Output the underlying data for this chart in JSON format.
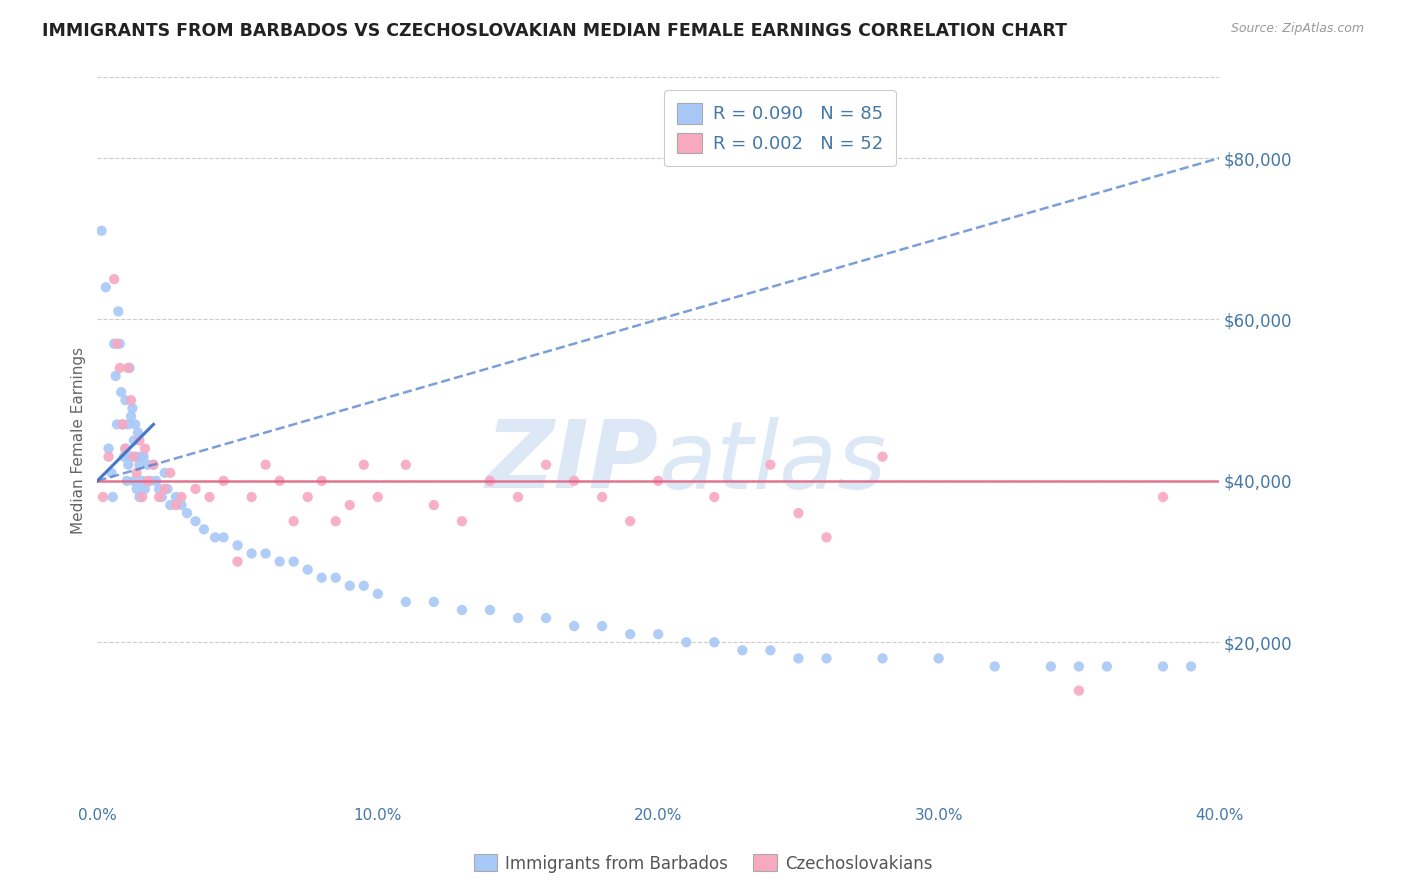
{
  "title": "IMMIGRANTS FROM BARBADOS VS CZECHOSLOVAKIAN MEDIAN FEMALE EARNINGS CORRELATION CHART",
  "source": "Source: ZipAtlas.com",
  "ylabel": "Median Female Earnings",
  "legend_label1": "Immigrants from Barbados",
  "legend_label2": "Czechoslovakians",
  "R1": 0.09,
  "N1": 85,
  "R2": 0.002,
  "N2": 52,
  "color1": "#a8c8f8",
  "color2": "#f8a8c0",
  "trendline1_color": "#4477cc",
  "trendline2_color": "#e06080",
  "axis_label_color": "#4477aa",
  "watermark_color": "#dce8f5",
  "background_color": "#ffffff",
  "grid_color": "#cccccc",
  "xlim": [
    0,
    40
  ],
  "ylim": [
    0,
    90000
  ],
  "xlabel_vals": [
    0.0,
    10.0,
    20.0,
    30.0,
    40.0
  ],
  "ylabel_vals": [
    20000,
    40000,
    60000,
    80000
  ],
  "barbados_x": [
    0.15,
    0.3,
    0.4,
    0.5,
    0.55,
    0.6,
    0.65,
    0.7,
    0.75,
    0.8,
    0.85,
    0.9,
    0.95,
    1.0,
    1.0,
    1.05,
    1.1,
    1.1,
    1.15,
    1.2,
    1.2,
    1.25,
    1.3,
    1.3,
    1.35,
    1.4,
    1.4,
    1.45,
    1.5,
    1.5,
    1.55,
    1.6,
    1.65,
    1.7,
    1.8,
    1.9,
    2.0,
    2.1,
    2.2,
    2.3,
    2.4,
    2.5,
    2.6,
    2.8,
    3.0,
    3.2,
    3.5,
    3.8,
    4.2,
    4.5,
    5.0,
    5.5,
    6.0,
    6.5,
    7.0,
    7.5,
    8.0,
    8.5,
    9.0,
    9.5,
    10.0,
    11.0,
    12.0,
    13.0,
    14.0,
    15.0,
    16.0,
    17.0,
    18.0,
    19.0,
    20.0,
    21.0,
    22.0,
    23.0,
    24.0,
    25.0,
    26.0,
    28.0,
    30.0,
    32.0,
    34.0,
    35.0,
    36.0,
    38.0,
    39.0
  ],
  "barbados_y": [
    71000,
    64000,
    44000,
    41000,
    38000,
    57000,
    53000,
    47000,
    61000,
    57000,
    51000,
    47000,
    43000,
    50000,
    44000,
    40000,
    47000,
    42000,
    54000,
    48000,
    43000,
    49000,
    45000,
    40000,
    47000,
    43000,
    39000,
    46000,
    42000,
    38000,
    43000,
    40000,
    43000,
    39000,
    42000,
    40000,
    42000,
    40000,
    39000,
    38000,
    41000,
    39000,
    37000,
    38000,
    37000,
    36000,
    35000,
    34000,
    33000,
    33000,
    32000,
    31000,
    31000,
    30000,
    30000,
    29000,
    28000,
    28000,
    27000,
    27000,
    26000,
    25000,
    25000,
    24000,
    24000,
    23000,
    23000,
    22000,
    22000,
    21000,
    21000,
    20000,
    20000,
    19000,
    19000,
    18000,
    18000,
    18000,
    18000,
    17000,
    17000,
    17000,
    17000,
    17000,
    17000
  ],
  "czech_x": [
    0.2,
    0.4,
    0.6,
    0.7,
    0.8,
    0.9,
    1.0,
    1.1,
    1.2,
    1.3,
    1.4,
    1.5,
    1.6,
    1.7,
    1.8,
    2.0,
    2.2,
    2.4,
    2.6,
    2.8,
    3.0,
    3.5,
    4.0,
    4.5,
    5.0,
    5.5,
    6.0,
    6.5,
    7.0,
    7.5,
    8.0,
    8.5,
    9.0,
    9.5,
    10.0,
    11.0,
    12.0,
    13.0,
    14.0,
    15.0,
    16.0,
    17.0,
    18.0,
    19.0,
    20.0,
    22.0,
    24.0,
    25.0,
    26.0,
    28.0,
    35.0,
    38.0
  ],
  "czech_y": [
    38000,
    43000,
    65000,
    57000,
    54000,
    47000,
    44000,
    54000,
    50000,
    43000,
    41000,
    45000,
    38000,
    44000,
    40000,
    42000,
    38000,
    39000,
    41000,
    37000,
    38000,
    39000,
    38000,
    40000,
    30000,
    38000,
    42000,
    40000,
    35000,
    38000,
    40000,
    35000,
    37000,
    42000,
    38000,
    42000,
    37000,
    35000,
    40000,
    38000,
    42000,
    40000,
    38000,
    35000,
    40000,
    38000,
    42000,
    36000,
    33000,
    43000,
    14000,
    38000
  ],
  "trendline1_x": [
    0,
    40
  ],
  "trendline1_y": [
    40000,
    80000
  ],
  "trendline2_y": [
    40000,
    40000
  ]
}
